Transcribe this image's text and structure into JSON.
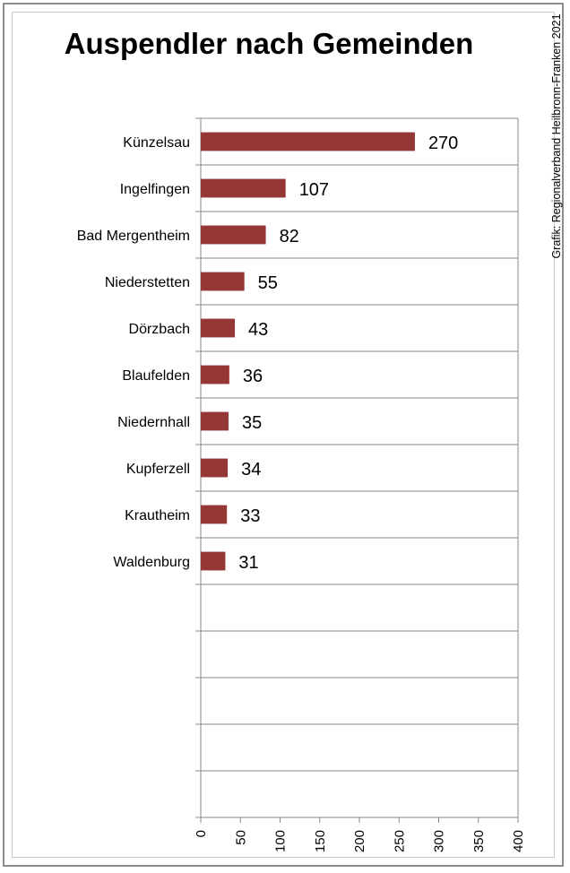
{
  "chart_data": {
    "type": "bar",
    "orientation": "horizontal",
    "title": "Auspendler nach Gemeinden",
    "credit": "Grafik: Regionalverband Heilbronn-Franken 2021",
    "categories": [
      "Künzelsau",
      "Ingelfingen",
      "Bad Mergentheim",
      "Niederstetten",
      "Dörzbach",
      "Blaufelden",
      "Niedernhall",
      "Kupferzell",
      "Krautheim",
      "Waldenburg"
    ],
    "values": [
      270,
      107,
      82,
      55,
      43,
      36,
      35,
      34,
      33,
      31
    ],
    "xlim": [
      0,
      400
    ],
    "ticks": [
      0,
      50,
      100,
      150,
      200,
      250,
      300,
      350,
      400
    ],
    "category_slots": 15,
    "grid": true,
    "bar_color": "#953735",
    "grid_color": "#888888"
  }
}
